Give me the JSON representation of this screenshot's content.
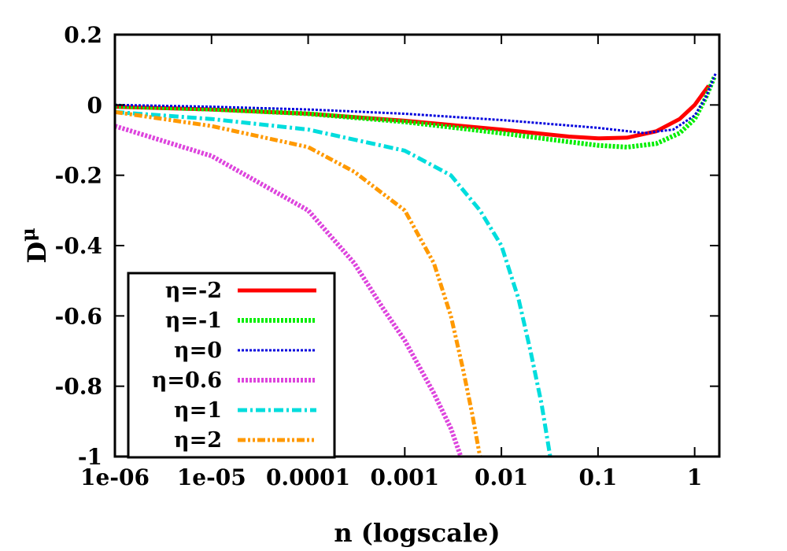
{
  "chart_data": {
    "type": "line",
    "xlabel": "n (logscale)",
    "ylabel": "D",
    "ylabel_superscript": "μ",
    "x_scale": "log",
    "xlim": [
      1e-06,
      1.8
    ],
    "ylim": [
      -1,
      0.2
    ],
    "x_ticks": [
      {
        "value": 1e-06,
        "label": "1e-06"
      },
      {
        "value": 1e-05,
        "label": "1e-05"
      },
      {
        "value": 0.0001,
        "label": "0.0001"
      },
      {
        "value": 0.001,
        "label": "0.001"
      },
      {
        "value": 0.01,
        "label": "0.01"
      },
      {
        "value": 0.1,
        "label": "0.1"
      },
      {
        "value": 1,
        "label": "1"
      }
    ],
    "y_ticks": [
      {
        "value": 0.2,
        "label": "0.2"
      },
      {
        "value": 0,
        "label": "0"
      },
      {
        "value": -0.2,
        "label": "-0.2"
      },
      {
        "value": -0.4,
        "label": "-0.4"
      },
      {
        "value": -0.6,
        "label": "-0.6"
      },
      {
        "value": -0.8,
        "label": "-0.8"
      },
      {
        "value": -1,
        "label": "-1"
      }
    ],
    "grid": false,
    "legend_position": "bottom-left",
    "series": [
      {
        "name": "η=-2",
        "color": "#ff0000",
        "dash": "solid",
        "width": 5,
        "points": [
          [
            1e-06,
            -0.005
          ],
          [
            1e-05,
            -0.013
          ],
          [
            0.0001,
            -0.025
          ],
          [
            0.001,
            -0.045
          ],
          [
            0.01,
            -0.07
          ],
          [
            0.05,
            -0.09
          ],
          [
            0.1,
            -0.095
          ],
          [
            0.2,
            -0.093
          ],
          [
            0.4,
            -0.075
          ],
          [
            0.7,
            -0.04
          ],
          [
            1,
            0
          ],
          [
            1.2,
            0.03
          ],
          [
            1.4,
            0.055
          ]
        ]
      },
      {
        "name": "η=-1",
        "color": "#00ee00",
        "dash": "dotted",
        "width": 6,
        "points": [
          [
            1e-06,
            -0.003
          ],
          [
            1e-05,
            -0.012
          ],
          [
            0.0001,
            -0.025
          ],
          [
            0.001,
            -0.048
          ],
          [
            0.01,
            -0.08
          ],
          [
            0.05,
            -0.105
          ],
          [
            0.1,
            -0.115
          ],
          [
            0.2,
            -0.12
          ],
          [
            0.4,
            -0.11
          ],
          [
            0.7,
            -0.08
          ],
          [
            1,
            -0.04
          ],
          [
            1.3,
            0.02
          ],
          [
            1.6,
            0.08
          ]
        ]
      },
      {
        "name": "η=0",
        "color": "#0000dd",
        "dash": "dotted",
        "width": 3,
        "points": [
          [
            1e-06,
            0
          ],
          [
            1e-05,
            -0.005
          ],
          [
            0.0001,
            -0.013
          ],
          [
            0.001,
            -0.025
          ],
          [
            0.01,
            -0.043
          ],
          [
            0.1,
            -0.065
          ],
          [
            0.3,
            -0.08
          ],
          [
            0.6,
            -0.07
          ],
          [
            1,
            -0.03
          ],
          [
            1.3,
            0.02
          ],
          [
            1.65,
            0.09
          ]
        ]
      },
      {
        "name": "η=0.6",
        "color": "#dd44dd",
        "dash": "dotted",
        "width": 6,
        "points": [
          [
            1e-06,
            -0.06
          ],
          [
            1e-05,
            -0.145
          ],
          [
            0.0001,
            -0.3
          ],
          [
            0.0003,
            -0.45
          ],
          [
            0.0006,
            -0.58
          ],
          [
            0.001,
            -0.67
          ],
          [
            0.002,
            -0.82
          ],
          [
            0.003,
            -0.92
          ],
          [
            0.0038,
            -1
          ]
        ]
      },
      {
        "name": "η=1",
        "color": "#00dddd",
        "dash": "dashdot",
        "width": 5,
        "points": [
          [
            1e-06,
            -0.02
          ],
          [
            1e-05,
            -0.04
          ],
          [
            0.0001,
            -0.07
          ],
          [
            0.001,
            -0.13
          ],
          [
            0.003,
            -0.2
          ],
          [
            0.006,
            -0.3
          ],
          [
            0.01,
            -0.4
          ],
          [
            0.015,
            -0.55
          ],
          [
            0.02,
            -0.7
          ],
          [
            0.026,
            -0.85
          ],
          [
            0.032,
            -1
          ]
        ]
      },
      {
        "name": "η=2",
        "color": "#ff9900",
        "dash": "dashdotdot",
        "width": 5,
        "points": [
          [
            1e-06,
            -0.02
          ],
          [
            1e-05,
            -0.06
          ],
          [
            0.0001,
            -0.12
          ],
          [
            0.0003,
            -0.19
          ],
          [
            0.001,
            -0.3
          ],
          [
            0.002,
            -0.45
          ],
          [
            0.003,
            -0.6
          ],
          [
            0.004,
            -0.75
          ],
          [
            0.005,
            -0.88
          ],
          [
            0.006,
            -1
          ]
        ]
      }
    ]
  }
}
